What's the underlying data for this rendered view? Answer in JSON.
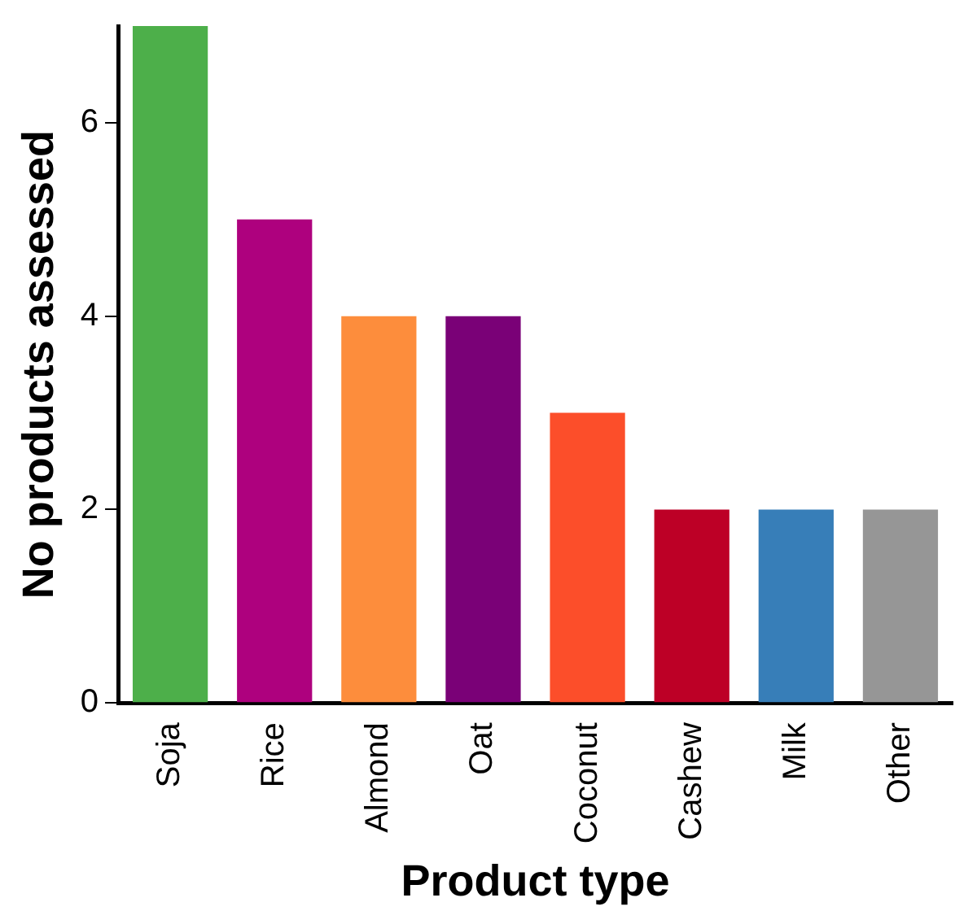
{
  "chart_data": {
    "type": "bar",
    "xlabel": "Product type",
    "ylabel": "No products assessed",
    "categories": [
      "Soja",
      "Rice",
      "Almond",
      "Oat",
      "Coconut",
      "Cashew",
      "Milk",
      "Other"
    ],
    "values": [
      7,
      5,
      4,
      4,
      3,
      2,
      2,
      2
    ],
    "colors": [
      "#4daf4a",
      "#ae017e",
      "#fd8d3c",
      "#7a0177",
      "#fc4e2a",
      "#bd0026",
      "#377eb8",
      "#969696"
    ],
    "ylim": [
      0,
      7
    ],
    "yticks": [
      0,
      2,
      4,
      6
    ],
    "grid": false,
    "legend": false
  }
}
